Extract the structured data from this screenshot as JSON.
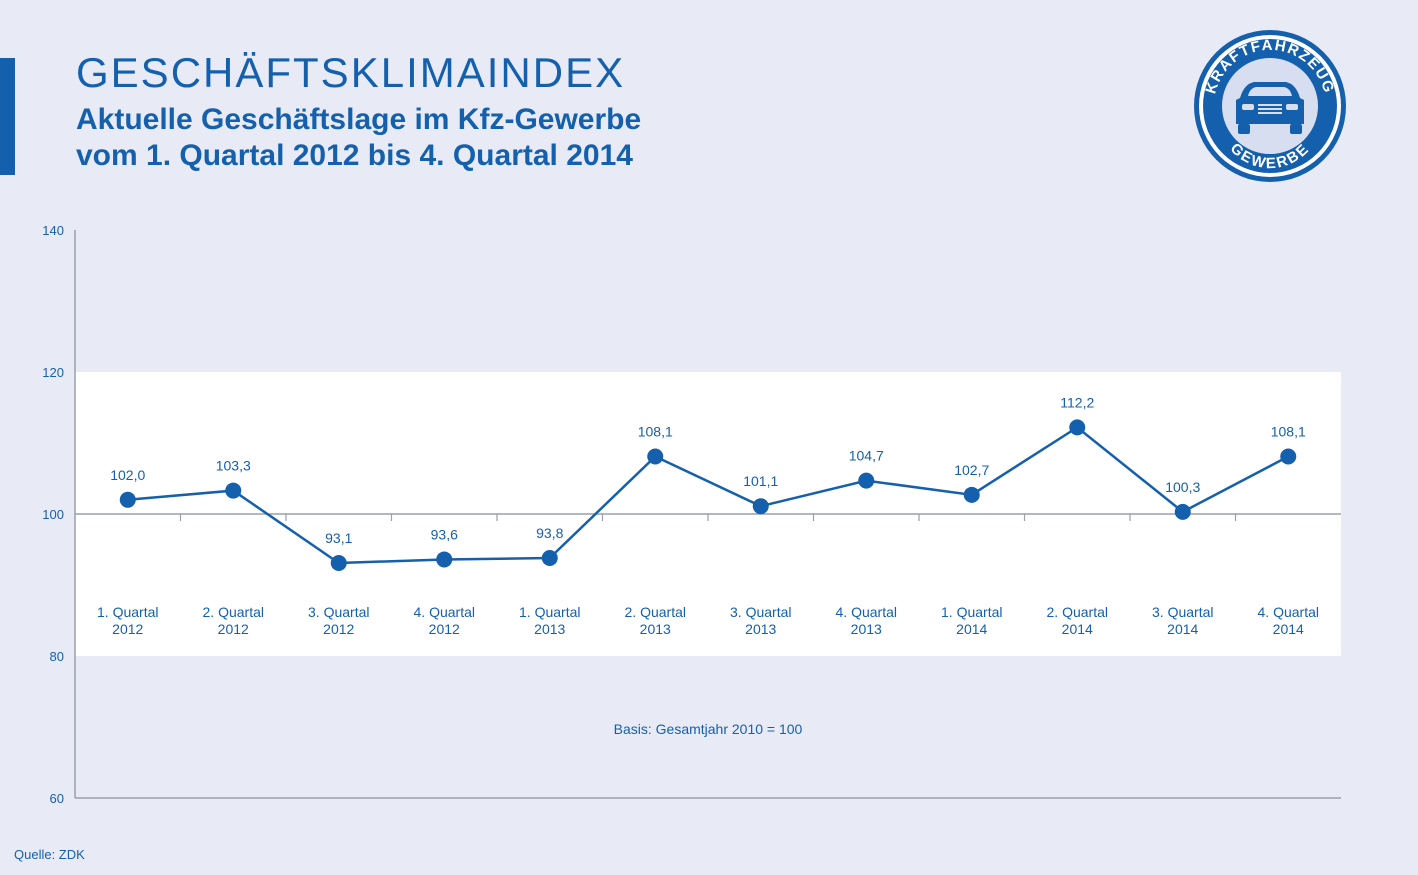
{
  "header": {
    "title": "GESCHÄFTSKLIMAINDEX",
    "subtitle_line1": "Aktuelle Geschäftslage im Kfz-Gewerbe",
    "subtitle_line2": "vom 1. Quartal 2012 bis 4. Quartal 2014"
  },
  "logo": {
    "top_text": "KRAFTFAHRZEUG",
    "bottom_text": "GEWERBE",
    "icon": "car-icon"
  },
  "colors": {
    "accent": "#1560ad",
    "background": "#e8ebf6",
    "band": "#ffffff",
    "axis": "#9aa0aa"
  },
  "chart_data": {
    "type": "line",
    "categories": [
      [
        "1. Quartal",
        "2012"
      ],
      [
        "2. Quartal",
        "2012"
      ],
      [
        "3. Quartal",
        "2012"
      ],
      [
        "4. Quartal",
        "2012"
      ],
      [
        "1. Quartal",
        "2013"
      ],
      [
        "2. Quartal",
        "2013"
      ],
      [
        "3. Quartal",
        "2013"
      ],
      [
        "4. Quartal",
        "2013"
      ],
      [
        "1. Quartal",
        "2014"
      ],
      [
        "2. Quartal",
        "2014"
      ],
      [
        "3. Quartal",
        "2014"
      ],
      [
        "4. Quartal",
        "2014"
      ]
    ],
    "values": [
      102.0,
      103.3,
      93.1,
      93.6,
      93.8,
      108.1,
      101.1,
      104.7,
      102.7,
      112.2,
      100.3,
      108.1
    ],
    "labels": [
      "102,0",
      "103,3",
      "93,1",
      "93,6",
      "93,8",
      "108,1",
      "101,1",
      "104,7",
      "102,7",
      "112,2",
      "100,3",
      "108,1"
    ],
    "y_ticks": [
      "60",
      "80",
      "100",
      "120",
      "140"
    ],
    "ylim": [
      60,
      140
    ],
    "bands": [
      [
        80,
        120
      ]
    ],
    "baseline": 100,
    "note": "Basis: Gesamtjahr 2010 = 100"
  },
  "footer": {
    "source": "Quelle: ZDK"
  }
}
